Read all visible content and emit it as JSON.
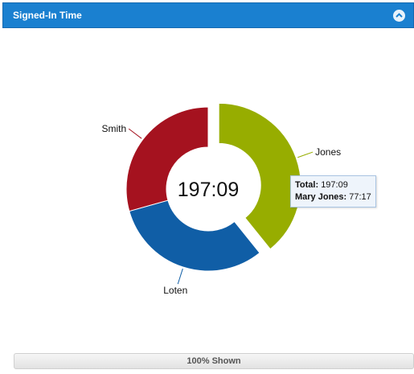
{
  "header": {
    "title": "Signed-In Time"
  },
  "icons": {
    "collapse": "chevron-up-icon"
  },
  "chart_data": {
    "type": "pie",
    "center_label": "197:09",
    "categories": [
      "Jones",
      "Loten",
      "Smith"
    ],
    "values": [
      77.28,
      62.0,
      57.87
    ],
    "colors": [
      "#97ad00",
      "#105ea6",
      "#a5121f"
    ],
    "exploded": "Jones",
    "tooltip": {
      "total_label": "Total:",
      "total_value": "197:09",
      "item_label": "Mary Jones:",
      "item_value": "77:17"
    }
  },
  "footer": {
    "status": "100% Shown"
  }
}
